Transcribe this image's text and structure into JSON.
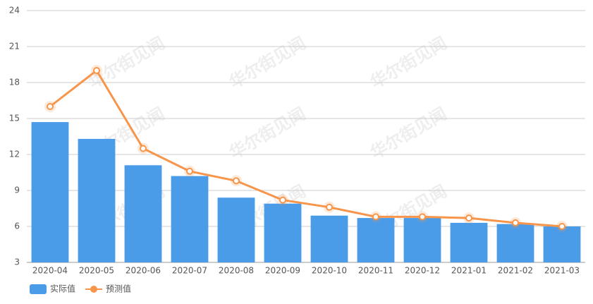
{
  "chart_data": {
    "type": "combo",
    "categories": [
      "2020-04",
      "2020-05",
      "2020-06",
      "2020-07",
      "2020-08",
      "2020-09",
      "2020-10",
      "2020-11",
      "2020-12",
      "2021-01",
      "2021-02",
      "2021-03"
    ],
    "series": [
      {
        "name": "实际值",
        "type": "bar",
        "color": "#4a9be8",
        "values": [
          14.7,
          13.3,
          11.1,
          10.2,
          8.4,
          7.9,
          6.9,
          6.7,
          6.7,
          6.3,
          6.2,
          6.0
        ]
      },
      {
        "name": "预测值",
        "type": "line",
        "color": "#f7954b",
        "values": [
          16,
          19,
          12.5,
          10.6,
          9.8,
          8.2,
          7.6,
          6.8,
          6.8,
          6.7,
          6.3,
          6.0
        ]
      }
    ],
    "ylim": [
      3,
      24
    ],
    "yticks": [
      3,
      6,
      9,
      12,
      15,
      18,
      21,
      24
    ],
    "grid": true,
    "legend": "bottom-left",
    "watermark": "华尔街见闻"
  }
}
